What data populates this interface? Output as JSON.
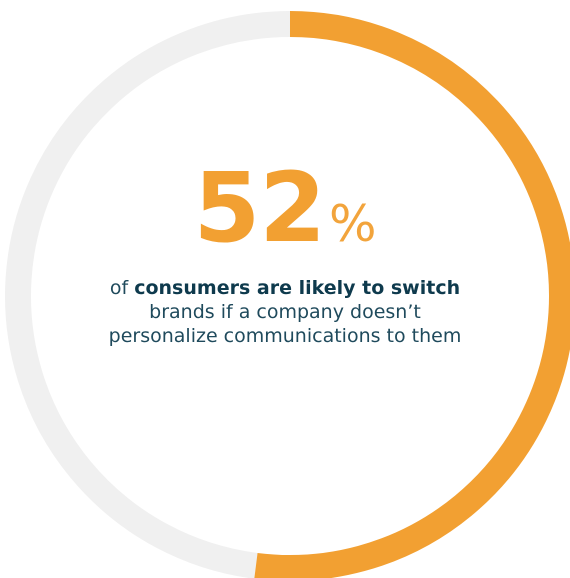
{
  "chart_data": {
    "type": "pie",
    "style": "donut",
    "categories": [
      "consumers likely to switch",
      "other"
    ],
    "values": [
      52,
      48
    ],
    "unit": "%",
    "title": "",
    "start_position": "top",
    "direction": "clockwise"
  },
  "colors": {
    "highlight": "#f2a032",
    "remainder": "#f0f0f0",
    "text_dark": "#0e3a4d",
    "text_body": "#1f4a5c"
  },
  "stat": {
    "value": "52",
    "unit": "%"
  },
  "caption": {
    "prefix": "of ",
    "bold": "consumers are likely to switch",
    "line2": "brands if a company doesn’t",
    "line3": "personalize communications to them"
  }
}
